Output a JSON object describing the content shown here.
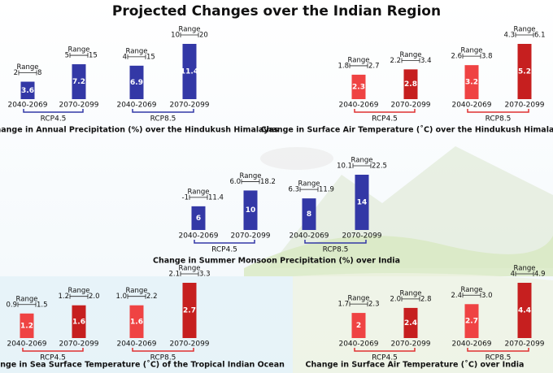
{
  "title": "Projected Changes over the Indian Region",
  "chart_data": [
    {
      "type": "bar",
      "title": "Change in Annual Precipitation (%) over the Hindukush Himalayas",
      "range_label": "Range",
      "colors": [
        "#3338a6",
        "#3338a6"
      ],
      "bracket_color": "#3338a6",
      "groups": [
        {
          "name": "RCP4.5",
          "categories": [
            "2040-2069",
            "2070-2099"
          ],
          "values": [
            3.6,
            7.2
          ],
          "range_low": [
            2,
            5
          ],
          "range_high": [
            8,
            15
          ]
        },
        {
          "name": "RCP8.5",
          "categories": [
            "2040-2069",
            "2070-2099"
          ],
          "values": [
            6.9,
            11.4
          ],
          "range_low": [
            4,
            10
          ],
          "range_high": [
            15,
            20
          ]
        }
      ]
    },
    {
      "type": "bar",
      "title": "Change in Surface Air Temperature (˚C) over the Hindukush Himalayas",
      "range_label": "Range",
      "colors": [
        "#ef4343",
        "#c61f1f"
      ],
      "bracket_color": "#e03030",
      "groups": [
        {
          "name": "RCP4.5",
          "categories": [
            "2040-2069",
            "2070-2099"
          ],
          "values": [
            2.3,
            2.8
          ],
          "range_low": [
            1.8,
            2.2
          ],
          "range_high": [
            2.7,
            3.4
          ]
        },
        {
          "name": "RCP8.5",
          "categories": [
            "2040-2069",
            "2070-2099"
          ],
          "values": [
            3.2,
            5.2
          ],
          "range_low": [
            2.6,
            4.3
          ],
          "range_high": [
            3.8,
            6.1
          ]
        }
      ]
    },
    {
      "type": "bar",
      "title": "Change in Summer Monsoon Precipitation (%) over India",
      "range_label": "Range",
      "colors": [
        "#3338a6",
        "#3338a6"
      ],
      "bracket_color": "#3338a6",
      "groups": [
        {
          "name": "RCP4.5",
          "categories": [
            "2040-2069",
            "2070-2099"
          ],
          "values": [
            6,
            10
          ],
          "range_low": [
            -1,
            {
              "value": 6,
              "label": "6.0"
            }
          ],
          "range_high": [
            11.4,
            18.2
          ]
        },
        {
          "name": "RCP8.5",
          "categories": [
            "2040-2069",
            "2070-2099"
          ],
          "values": [
            8,
            14
          ],
          "range_low": [
            6.3,
            10.1
          ],
          "range_high": [
            11.9,
            22.5
          ]
        }
      ]
    },
    {
      "type": "bar",
      "title": "Change in Sea Surface Temperature (˚C) of the Tropical Indian Ocean",
      "range_label": "Range",
      "colors": [
        "#ef4343",
        "#c61f1f"
      ],
      "bracket_color": "#e03030",
      "groups": [
        {
          "name": "RCP4.5",
          "categories": [
            "2040-2069",
            "2070-2099"
          ],
          "values": [
            1.2,
            1.6
          ],
          "range_low": [
            0.9,
            1.2
          ],
          "range_high": [
            1.5,
            {
              "value": 2,
              "label": "2.0"
            }
          ]
        },
        {
          "name": "RCP8.5",
          "categories": [
            "2040-2069",
            "2070-2099"
          ],
          "values": [
            1.6,
            2.7
          ],
          "range_low": [
            {
              "value": 1,
              "label": "1.0"
            },
            2.1
          ],
          "range_high": [
            2.2,
            3.3
          ]
        }
      ]
    },
    {
      "type": "bar",
      "title": "Change in Surface Air Temperature (˚C) over India",
      "range_label": "Range",
      "colors": [
        "#ef4343",
        "#c61f1f"
      ],
      "bracket_color": "#e03030",
      "groups": [
        {
          "name": "RCP4.5",
          "categories": [
            "2040-2069",
            "2070-2099"
          ],
          "values": [
            2,
            2.4
          ],
          "range_low": [
            1.7,
            {
              "value": 2,
              "label": "2.0"
            }
          ],
          "range_high": [
            2.3,
            2.8
          ]
        },
        {
          "name": "RCP8.5",
          "categories": [
            "2040-2069",
            "2070-2099"
          ],
          "values": [
            2.7,
            4.4
          ],
          "range_low": [
            2.4,
            4
          ],
          "range_high": [
            {
              "value": 3,
              "label": "3.0"
            },
            4.9
          ]
        }
      ]
    }
  ]
}
